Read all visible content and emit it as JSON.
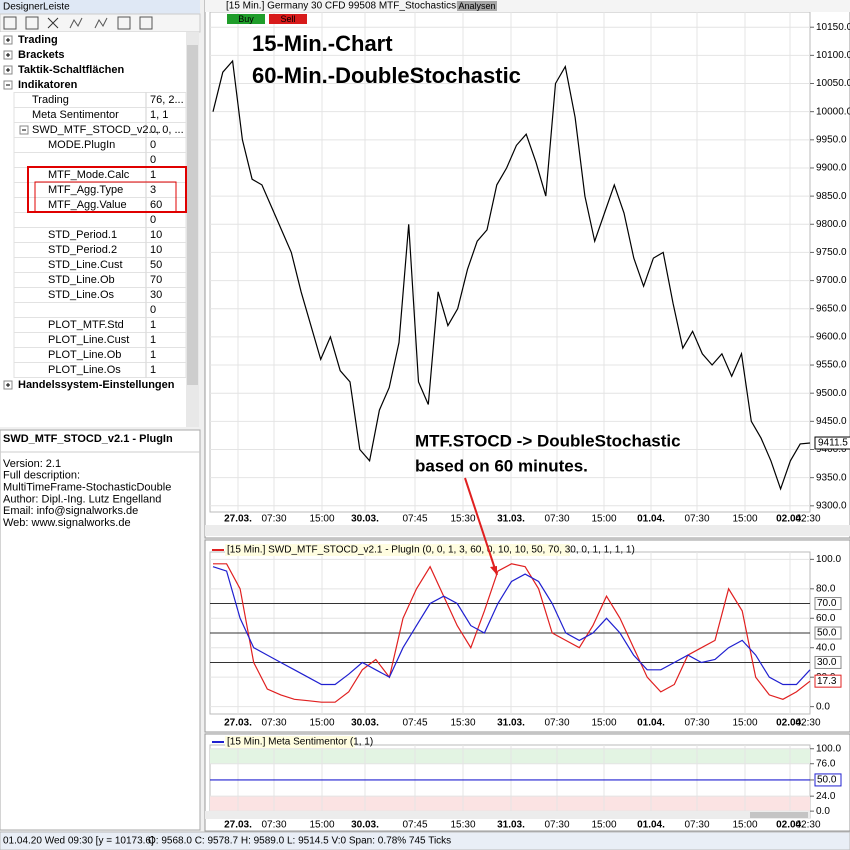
{
  "left_panel": {
    "title": "DesignerLeiste",
    "tree": [
      {
        "label": "Trading"
      },
      {
        "label": "Brackets"
      },
      {
        "label": "Taktik-Schaltflächen"
      },
      {
        "label": "Indikatoren"
      },
      {
        "label": "Trading",
        "value": "76, 2..."
      },
      {
        "label": "Meta Sentimentor",
        "value": "1, 1"
      },
      {
        "label": "SWD_MTF_STOCD_v2....",
        "value": "0, 0, ..."
      },
      {
        "label": "MODE.PlugIn",
        "value": "0"
      },
      {
        "value": "0"
      },
      {
        "label": "MTF_Mode.Calc",
        "value": "1"
      },
      {
        "label": "MTF_Agg.Type",
        "value": "3"
      },
      {
        "label": "MTF_Agg.Value",
        "value": "60"
      },
      {
        "value": "0"
      },
      {
        "label": "STD_Period.1",
        "value": "10"
      },
      {
        "label": "STD_Period.2",
        "value": "10"
      },
      {
        "label": "STD_Line.Cust",
        "value": "50"
      },
      {
        "label": "STD_Line.Ob",
        "value": "70"
      },
      {
        "label": "STD_Line.Os",
        "value": "30"
      },
      {
        "value": "0"
      },
      {
        "label": "PLOT_MTF.Std",
        "value": "1"
      },
      {
        "label": "PLOT_Line.Cust",
        "value": "1"
      },
      {
        "label": "PLOT_Line.Ob",
        "value": "1"
      },
      {
        "label": "PLOT_Line.Os",
        "value": "1"
      },
      {
        "label": "Handelssystem-Einstellungen"
      }
    ]
  },
  "description": {
    "title": "SWD_MTF_STOCD_v2.1 - PlugIn",
    "lines": [
      "Version: 2.1",
      "Full description:",
      "MultiTimeFrame-StochasticDouble",
      "Author: Dipl.-Ing. Lutz Engelland",
      "Email: info@signalworks.de",
      "Web: www.signalworks.de"
    ]
  },
  "status_bar": {
    "left": "01.04.20 Wed  09:30 [y = 10173.6]",
    "right": "O: 9568.0 C: 9578.7 H: 9589.0 L: 9514.5 V:0  Span: 0.78% 745 Ticks"
  },
  "chart_data": [
    {
      "type": "line",
      "title": "[15 Min.] Germany 30 CFD   99508 MTF_StochasticsDouble",
      "buttons": [
        "Buy",
        "Sell",
        "Analysen"
      ],
      "annotations": [
        "15-Min.-Chart",
        "60-Min.-DoubleStochastic",
        "MTF.STOCD -> DoubleStochastic",
        "based on 60 minutes."
      ],
      "x_labels": [
        "27.03.",
        "07:30",
        "15:00",
        "30.03.",
        "07:45",
        "15:30",
        "31.03.",
        "07:30",
        "15:00",
        "01.04.",
        "07:30",
        "15:00",
        "02.04.",
        "02:30"
      ],
      "color": "#000000",
      "values": [
        10000,
        10070,
        10090,
        9950,
        9880,
        9870,
        9830,
        9790,
        9750,
        9680,
        9620,
        9560,
        9600,
        9540,
        9520,
        9400,
        9380,
        9470,
        9510,
        9590,
        9800,
        9520,
        9480,
        9680,
        9620,
        9650,
        9720,
        9770,
        9790,
        9870,
        9900,
        9940,
        9960,
        9910,
        9850,
        10050,
        10080,
        9990,
        9850,
        9770,
        9820,
        9870,
        9820,
        9740,
        9690,
        9740,
        9750,
        9660,
        9580,
        9610,
        9570,
        9550,
        9570,
        9530,
        9570,
        9450,
        9420,
        9380,
        9330,
        9380,
        9410,
        9411.5
      ],
      "ylim": [
        9289,
        10177
      ],
      "yticks": [
        {
          "value": 10150,
          "label": "10150.0"
        },
        {
          "value": 10100,
          "label": "10100.0"
        },
        {
          "value": 10050,
          "label": "10050.0"
        },
        {
          "value": 10000,
          "label": "10000.0"
        },
        {
          "value": 9950,
          "label": "9950.0"
        },
        {
          "value": 9900,
          "label": "9900.0"
        },
        {
          "value": 9850,
          "label": "9850.0"
        },
        {
          "value": 9800,
          "label": "9800.0"
        },
        {
          "value": 9750,
          "label": "9750.0"
        },
        {
          "value": 9700,
          "label": "9700.0"
        },
        {
          "value": 9650,
          "label": "9650.0"
        },
        {
          "value": 9600,
          "label": "9600.0"
        },
        {
          "value": 9550,
          "label": "9550.0"
        },
        {
          "value": 9500,
          "label": "9500.0"
        },
        {
          "value": 9450,
          "label": "9450.0"
        },
        {
          "value": 9400,
          "label": "9400.0"
        },
        {
          "value": 9350,
          "label": "9350.0"
        },
        {
          "value": 9300,
          "label": "9300.0"
        }
      ],
      "grid": true
    },
    {
      "type": "line",
      "title": "[15 Min.] SWD_MTF_STOCD_v2.1 - PlugIn  (0, 0, 1, 3, 60, 0, 10, 10, 50, 70, 30, 0, 1, 1, 1, 1)",
      "x_labels": [
        "27.03.",
        "07:30",
        "15:00",
        "30.03.",
        "07:45",
        "15:30",
        "31.03.",
        "07:30",
        "15:00",
        "01.04.",
        "07:30",
        "15:00",
        "02.04.",
        "02:30"
      ],
      "series": [
        {
          "color": "#e02020",
          "values": [
            97,
            97,
            80,
            30,
            12,
            8,
            5,
            4,
            3,
            3,
            10,
            25,
            32,
            20,
            60,
            80,
            95,
            75,
            55,
            40,
            65,
            92,
            97,
            95,
            80,
            50,
            45,
            40,
            55,
            75,
            60,
            40,
            20,
            10,
            15,
            35,
            40,
            45,
            80,
            65,
            20,
            8,
            5,
            10,
            17.3
          ]
        },
        {
          "color": "#2020d0",
          "values": [
            95,
            92,
            60,
            40,
            35,
            30,
            25,
            20,
            15,
            15,
            22,
            30,
            25,
            20,
            40,
            55,
            70,
            75,
            70,
            55,
            50,
            70,
            85,
            90,
            85,
            70,
            50,
            45,
            50,
            60,
            50,
            35,
            25,
            25,
            30,
            35,
            30,
            32,
            40,
            45,
            35,
            20,
            15,
            15,
            25
          ]
        }
      ],
      "levels": [
        {
          "value": 70,
          "label": "70.0"
        },
        {
          "value": 50,
          "label": "50.0"
        },
        {
          "value": 30,
          "label": "30.0"
        }
      ],
      "ylim": [
        -5,
        105
      ],
      "yticks": [
        {
          "value": 100,
          "label": "100.0"
        },
        {
          "value": 80,
          "label": "80.0"
        },
        {
          "value": 60,
          "label": "60.0"
        },
        {
          "value": 40,
          "label": "40.0"
        },
        {
          "value": 20,
          "label": "20.0"
        },
        {
          "value": 0,
          "label": "0.0"
        }
      ],
      "grid": true
    },
    {
      "type": "line",
      "title": "[15 Min.] Meta Sentimentor  (1, 1)",
      "x_labels": [
        "27.03.",
        "07:30",
        "15:00",
        "30.03.",
        "07:45",
        "15:30",
        "31.03.",
        "07:30",
        "15:00",
        "01.04.",
        "07:30",
        "15:00",
        "02.04.",
        "02:30"
      ],
      "value": 50,
      "value_label": "50.0",
      "color": "#2020d0",
      "ylim": [
        -11,
        106
      ],
      "yticks": [
        {
          "value": 100,
          "label": "100.0"
        },
        {
          "value": 76,
          "label": "76.0"
        },
        {
          "value": 50,
          "label": "50.0"
        },
        {
          "value": 24,
          "label": "24.0"
        },
        {
          "value": 0,
          "label": "0.0"
        }
      ],
      "grid": true
    }
  ]
}
